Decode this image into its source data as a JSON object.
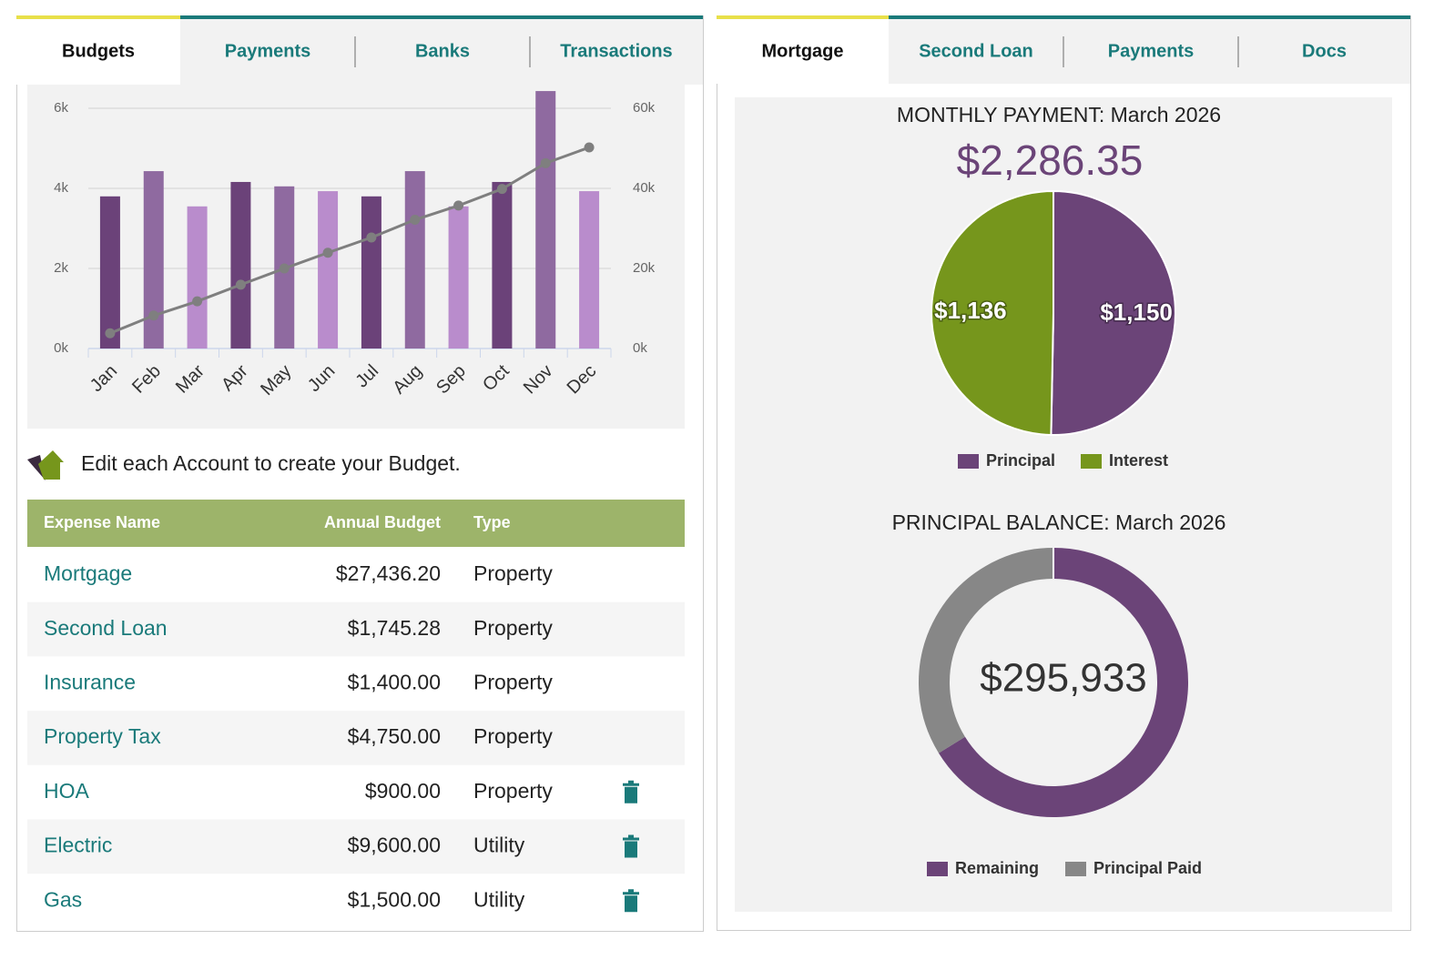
{
  "left_tabs": {
    "items": [
      "Budgets",
      "Payments",
      "Banks",
      "Transactions"
    ],
    "active": 0
  },
  "right_tabs": {
    "items": [
      "Mortgage",
      "Second Loan",
      "Payments",
      "Docs"
    ],
    "active": 0
  },
  "note": "Edit each Account to create your Budget.",
  "table": {
    "header": [
      "Expense Name",
      "Annual Budget",
      "Type"
    ],
    "rows": [
      {
        "name": "Mortgage",
        "budget": "$27,436.20",
        "type": "Property",
        "deletable": false
      },
      {
        "name": "Second Loan",
        "budget": "$1,745.28",
        "type": "Property",
        "deletable": false
      },
      {
        "name": "Insurance",
        "budget": "$1,400.00",
        "type": "Property",
        "deletable": false
      },
      {
        "name": "Property Tax",
        "budget": "$4,750.00",
        "type": "Property",
        "deletable": false
      },
      {
        "name": "HOA",
        "budget": "$900.00",
        "type": "Property",
        "deletable": true
      },
      {
        "name": "Electric",
        "budget": "$9,600.00",
        "type": "Utility",
        "deletable": true
      },
      {
        "name": "Gas",
        "budget": "$1,500.00",
        "type": "Utility",
        "deletable": true
      }
    ]
  },
  "chart_data": [
    {
      "type": "bar",
      "categories": [
        "Jan",
        "Feb",
        "Mar",
        "Apr",
        "May",
        "Jun",
        "Jul",
        "Aug",
        "Sep",
        "Oct",
        "Nov",
        "Dec"
      ],
      "values": [
        3800,
        4430,
        3550,
        4160,
        4050,
        3930,
        3800,
        4430,
        3550,
        4160,
        6430,
        3930
      ],
      "colors": [
        "#6b4279",
        "#8f6aa0",
        "#b98ccc",
        "#6b4279",
        "#8f6aa0",
        "#b98ccc",
        "#6b4279",
        "#8f6aa0",
        "#b98ccc",
        "#6b4279",
        "#8f6aa0",
        "#b98ccc"
      ],
      "line_values": [
        3800,
        8230,
        11780,
        15940,
        19990,
        23920,
        27720,
        32150,
        35700,
        39860,
        46290,
        50220
      ],
      "line_color": "#7f7f7f",
      "line_axis": "y2",
      "ylim": [
        0,
        6500
      ],
      "yticks": [
        {
          "value": 0,
          "label": "0k"
        },
        {
          "value": 2000,
          "label": "2k"
        },
        {
          "value": 4000,
          "label": "4k"
        },
        {
          "value": 6000,
          "label": "6k"
        }
      ],
      "y2lim": [
        0,
        65000
      ],
      "y2ticks": [
        {
          "value": 0,
          "label": "0k"
        },
        {
          "value": 20000,
          "label": "20k"
        },
        {
          "value": 40000,
          "label": "40k"
        },
        {
          "value": 60000,
          "label": "60k"
        }
      ],
      "grid": true
    },
    {
      "type": "pie",
      "title": "MONTHLY PAYMENT: March 2026",
      "subtitle": "$2,286.35",
      "categories": [
        "Principal",
        "Interest"
      ],
      "values": [
        1150,
        1136
      ],
      "value_labels": [
        "$1,150",
        "$1,136"
      ],
      "colors": [
        "#6b4478",
        "#76961c"
      ],
      "legend": "bottom"
    },
    {
      "type": "donut",
      "title": "PRINCIPAL BALANCE: March 2026",
      "categories": [
        "Remaining",
        "Principal Paid"
      ],
      "values": [
        295933,
        151000
      ],
      "value_labels": [
        "$295,933",
        null
      ],
      "colors": [
        "#6b4478",
        "#878787"
      ],
      "legend": "bottom"
    }
  ]
}
